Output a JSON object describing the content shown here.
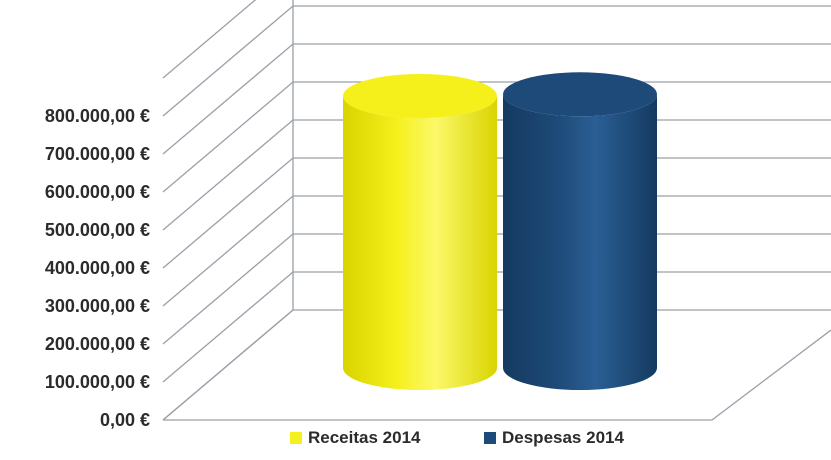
{
  "chart_data": {
    "type": "bar",
    "style": "3d-cylinder",
    "categories": [
      ""
    ],
    "series": [
      {
        "name": "Receitas 2014",
        "values": [
          800000
        ],
        "color": "#f5f01c"
      },
      {
        "name": "Despesas 2014",
        "values": [
          805000
        ],
        "color": "#1d4a78"
      }
    ],
    "ylim": [
      0,
      800000
    ],
    "yticks": [
      0,
      100000,
      200000,
      300000,
      400000,
      500000,
      600000,
      700000,
      800000
    ],
    "ytick_labels": [
      "0,00 €",
      "100.000,00 €",
      "200.000,00 €",
      "300.000,00 €",
      "400.000,00 €",
      "500.000,00 €",
      "600.000,00 €",
      "700.000,00 €",
      "800.000,00 €"
    ],
    "grid": true,
    "legend": "bottom",
    "title": "",
    "xlabel": "",
    "ylabel": ""
  }
}
